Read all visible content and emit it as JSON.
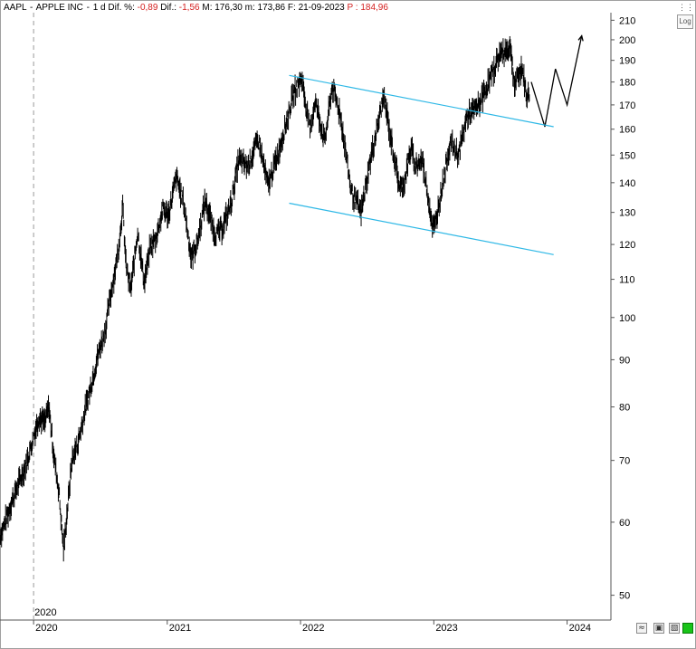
{
  "header": {
    "symbol": "AAPL",
    "name": "APPLE INC",
    "period": "1 d",
    "dif_pct_label": "Dif. %:",
    "dif_pct_value": "-0,89",
    "dif_label": "Dif.:",
    "dif_value": "-1,56",
    "m_label": "M:",
    "m_value": "176,30",
    "min_label": "m:",
    "min_value": "173,86",
    "date_label": "F:",
    "date_value": "21-09-2023",
    "p_label": "P :",
    "p_value": "184,96"
  },
  "controls": {
    "log_label": "Log",
    "menu_icon": "menu-dots-icon",
    "zoom_icon": "zoom-icon",
    "save_icon": "save-icon",
    "print_icon": "print-icon",
    "status_icon": "status-indicator-icon"
  },
  "colors": {
    "price": "#000000",
    "channel": "#2eb8e6",
    "projection": "#000000",
    "status_green": "#19c419"
  },
  "chart_data": {
    "type": "line",
    "title": "AAPL - APPLE INC - 1 d",
    "scale": "log",
    "ylim": [
      47,
      214
    ],
    "xlim": [
      "2019-10-01",
      "2024-04-30"
    ],
    "y_ticks": [
      50,
      60,
      70,
      80,
      90,
      100,
      110,
      120,
      130,
      140,
      150,
      160,
      170,
      180,
      190,
      200,
      210
    ],
    "x_ticks": [
      "2020",
      "2021",
      "2022",
      "2023",
      "2024"
    ],
    "x_tick_dates": [
      "2020-01-01",
      "2021-01-01",
      "2022-01-01",
      "2023-01-01",
      "2024-01-01"
    ],
    "marker_label": "2020",
    "grid": false,
    "series": [
      {
        "style": "price",
        "points": [
          [
            "2019-10-01",
            58
          ],
          [
            "2019-10-15",
            60
          ],
          [
            "2019-11-01",
            63
          ],
          [
            "2019-11-20",
            66
          ],
          [
            "2019-12-10",
            69
          ],
          [
            "2019-12-31",
            74
          ],
          [
            "2020-01-15",
            78
          ],
          [
            "2020-02-01",
            77
          ],
          [
            "2020-02-12",
            80
          ],
          [
            "2020-02-27",
            70
          ],
          [
            "2020-03-10",
            65
          ],
          [
            "2020-03-23",
            56
          ],
          [
            "2020-04-01",
            61
          ],
          [
            "2020-04-15",
            70
          ],
          [
            "2020-05-01",
            73
          ],
          [
            "2020-05-20",
            79
          ],
          [
            "2020-06-05",
            84
          ],
          [
            "2020-06-25",
            91
          ],
          [
            "2020-07-15",
            97
          ],
          [
            "2020-08-01",
            107
          ],
          [
            "2020-08-20",
            118
          ],
          [
            "2020-09-01",
            132
          ],
          [
            "2020-09-10",
            114
          ],
          [
            "2020-09-23",
            107
          ],
          [
            "2020-10-12",
            124
          ],
          [
            "2020-10-30",
            109
          ],
          [
            "2020-11-15",
            119
          ],
          [
            "2020-12-01",
            122
          ],
          [
            "2020-12-20",
            131
          ],
          [
            "2021-01-04",
            129
          ],
          [
            "2021-01-26",
            142
          ],
          [
            "2021-02-15",
            133
          ],
          [
            "2021-03-08",
            116
          ],
          [
            "2021-03-25",
            121
          ],
          [
            "2021-04-15",
            134
          ],
          [
            "2021-05-12",
            123
          ],
          [
            "2021-06-01",
            125
          ],
          [
            "2021-06-25",
            133
          ],
          [
            "2021-07-15",
            148
          ],
          [
            "2021-08-10",
            146
          ],
          [
            "2021-09-07",
            156
          ],
          [
            "2021-10-04",
            139
          ],
          [
            "2021-10-30",
            150
          ],
          [
            "2021-11-20",
            161
          ],
          [
            "2021-12-13",
            175
          ],
          [
            "2022-01-04",
            182
          ],
          [
            "2022-01-27",
            159
          ],
          [
            "2022-02-10",
            172
          ],
          [
            "2022-03-08",
            155
          ],
          [
            "2022-03-29",
            178
          ],
          [
            "2022-04-20",
            166
          ],
          [
            "2022-05-20",
            137
          ],
          [
            "2022-06-16",
            130
          ],
          [
            "2022-07-10",
            147
          ],
          [
            "2022-08-17",
            174
          ],
          [
            "2022-09-01",
            160
          ],
          [
            "2022-09-30",
            138
          ],
          [
            "2022-10-12",
            140
          ],
          [
            "2022-10-31",
            153
          ],
          [
            "2022-11-10",
            146
          ],
          [
            "2022-12-01",
            148
          ],
          [
            "2022-12-28",
            126
          ],
          [
            "2023-01-03",
            125
          ],
          [
            "2023-01-31",
            144
          ],
          [
            "2023-02-15",
            155
          ],
          [
            "2023-03-10",
            150
          ],
          [
            "2023-04-01",
            165
          ],
          [
            "2023-05-01",
            169
          ],
          [
            "2023-06-01",
            180
          ],
          [
            "2023-06-30",
            193
          ],
          [
            "2023-07-31",
            196
          ],
          [
            "2023-08-10",
            178
          ],
          [
            "2023-08-30",
            187
          ],
          [
            "2023-09-12",
            174
          ],
          [
            "2023-09-21",
            174
          ]
        ]
      },
      {
        "style": "projection",
        "points": [
          [
            "2023-09-25",
            180
          ],
          [
            "2023-11-01",
            161
          ],
          [
            "2023-11-30",
            186
          ],
          [
            "2024-01-01",
            170
          ],
          [
            "2024-02-10",
            202
          ]
        ]
      },
      {
        "style": "channel",
        "points": [
          [
            "2021-12-01",
            183
          ],
          [
            "2023-11-25",
            161
          ]
        ]
      },
      {
        "style": "channel",
        "points": [
          [
            "2021-12-01",
            133
          ],
          [
            "2023-11-25",
            117
          ]
        ]
      }
    ]
  }
}
